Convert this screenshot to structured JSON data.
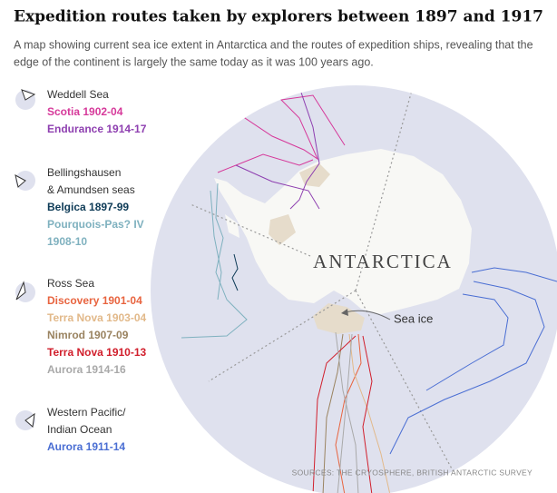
{
  "title": "Expedition routes taken by explorers between 1897 and 1917",
  "subtitle": [
    "A map showing current sea ice extent in Antarctica and the routes of expedition ships, revealing that the",
    "edge of the continent is largely the same today as it was 100 years ago."
  ],
  "legend": [
    {
      "region": [
        "Weddell Sea"
      ],
      "routes": [
        {
          "label": [
            "Scotia 1902-04"
          ],
          "color": "#d6399a"
        },
        {
          "label": [
            "Endurance 1914-17"
          ],
          "color": "#8e3fb0"
        }
      ]
    },
    {
      "region": [
        "Bellingshausen",
        "& Amundsen seas"
      ],
      "routes": [
        {
          "label": [
            "Belgica 1897-99"
          ],
          "color": "#0e3b57"
        },
        {
          "label": [
            "Pourquois-Pas? IV",
            "1908-10"
          ],
          "color": "#7fb1bf"
        }
      ]
    },
    {
      "region": [
        "Ross Sea"
      ],
      "routes": [
        {
          "label": [
            "Discovery 1901-04"
          ],
          "color": "#e8643f"
        },
        {
          "label": [
            "Terra Nova 1903-04"
          ],
          "color": "#e2b98a"
        },
        {
          "label": [
            "Nimrod 1907-09"
          ],
          "color": "#9a8360"
        },
        {
          "label": [
            "Terra Nova 1910-13"
          ],
          "color": "#d11f2c"
        },
        {
          "label": [
            "Aurora 1914-16"
          ],
          "color": "#a9a9a9"
        }
      ]
    },
    {
      "region": [
        "Western Pacific/",
        "Indian Ocean"
      ],
      "routes": [
        {
          "label": [
            "Aurora 1911-14"
          ],
          "color": "#4a6ed3"
        }
      ]
    }
  ],
  "map": {
    "continent_label": "ANTARCTICA",
    "sea_ice_label": "Sea ice"
  },
  "source": "SOURCES: THE CRYOSPHERE, BRITISH ANTARCTIC SURVEY"
}
